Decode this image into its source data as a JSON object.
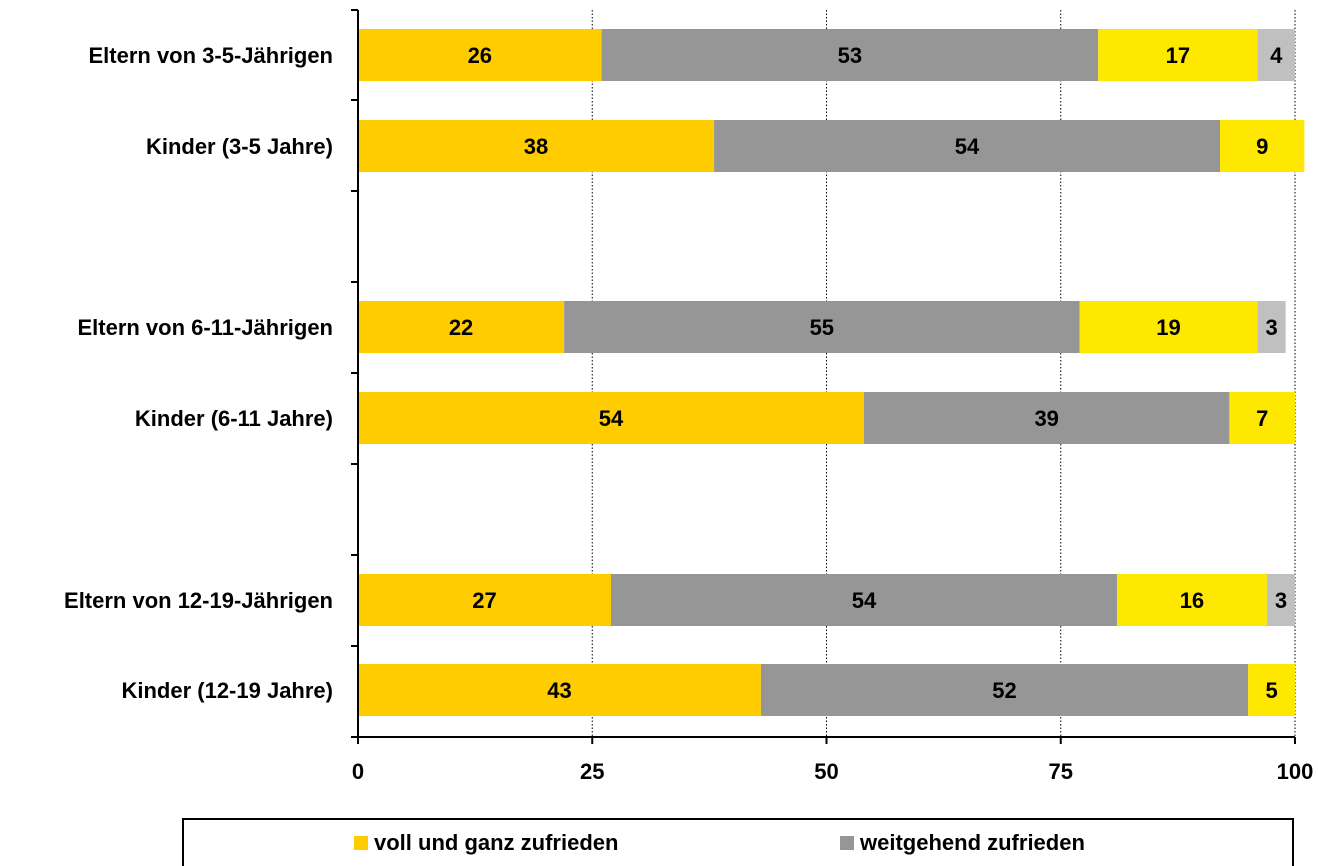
{
  "chart_data": {
    "type": "bar",
    "orientation": "horizontal",
    "stacked": true,
    "categories": [
      "Eltern von 3-5-Jährigen",
      "Kinder (3-5 Jahre)",
      "Eltern von 6-11-Jährigen",
      "Kinder (6-11 Jahre)",
      "Eltern von 12-19-Jährigen",
      "Kinder (12-19 Jahre)"
    ],
    "series": [
      {
        "name": "voll und ganz zufrieden",
        "color": "#FFCC00",
        "values": [
          26,
          38,
          22,
          54,
          27,
          43
        ]
      },
      {
        "name": "weitgehend zufrieden",
        "color": "#969696",
        "values": [
          53,
          54,
          55,
          39,
          54,
          52
        ]
      },
      {
        "color": "#FFE800",
        "values": [
          17,
          9,
          19,
          7,
          16,
          5
        ]
      },
      {
        "color": "#C0C0C0",
        "values": [
          4,
          null,
          3,
          null,
          3,
          null
        ]
      }
    ],
    "xlim": [
      0,
      100
    ],
    "xticks": [
      0,
      25,
      50,
      75,
      100
    ],
    "grid": "vertical-dotted",
    "legend_position": "bottom",
    "title": "",
    "xlabel": "",
    "ylabel": ""
  }
}
